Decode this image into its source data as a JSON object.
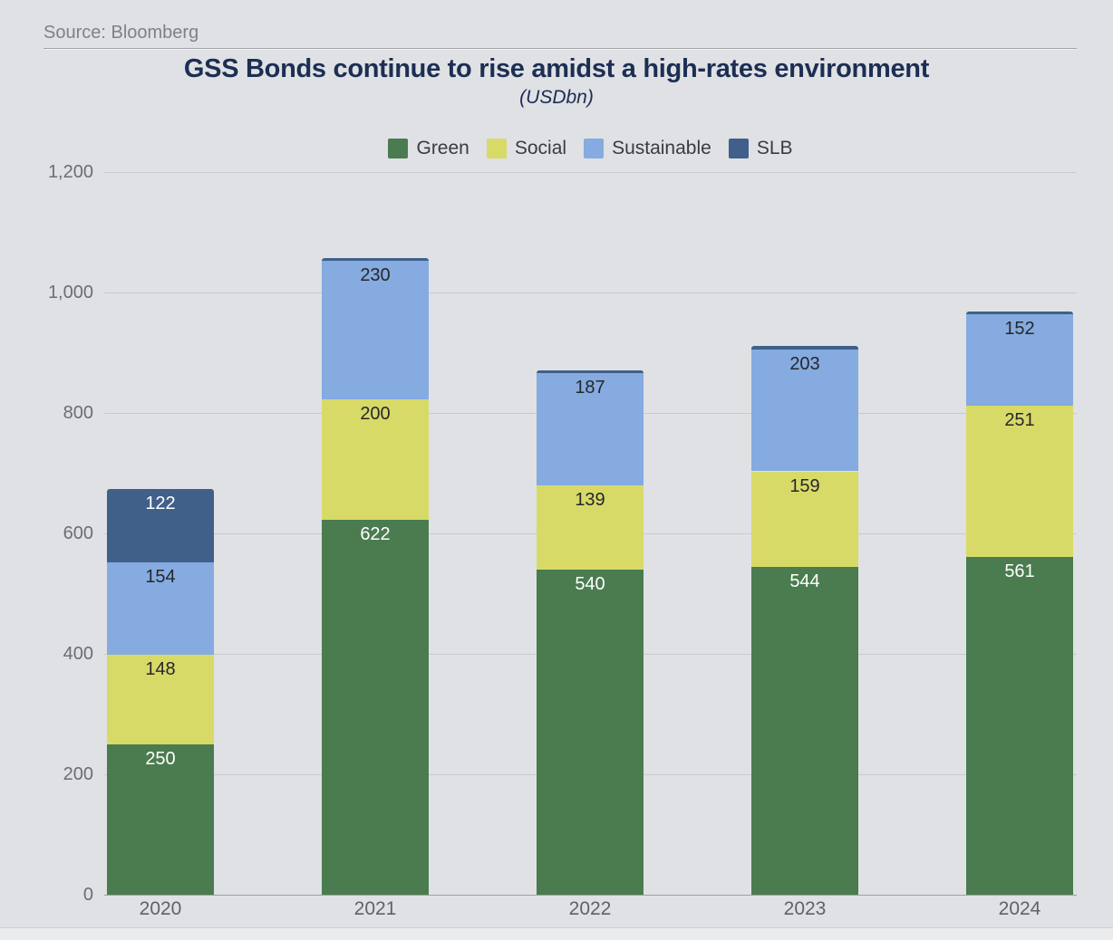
{
  "header": {
    "source": "Source: Bloomberg"
  },
  "chart_data": {
    "type": "bar",
    "stacked": true,
    "title": "GSS Bonds continue to rise amidst a high-rates environment",
    "subtitle": "(USDbn)",
    "categories": [
      "2020",
      "2021",
      "2022",
      "2023",
      "2024"
    ],
    "series": [
      {
        "name": "Green",
        "color": "#4a7c4f",
        "label_color": "#ffffff",
        "values": [
          250,
          622,
          540,
          544,
          561
        ]
      },
      {
        "name": "Social",
        "color": "#d8da68",
        "label_color": "#26272b",
        "values": [
          148,
          200,
          139,
          159,
          251
        ]
      },
      {
        "name": "Sustainable",
        "color": "#85abe0",
        "label_color": "#26272b",
        "values": [
          154,
          230,
          187,
          203,
          152
        ]
      },
      {
        "name": "SLB",
        "color": "#40608a",
        "label_color": "#ffffff",
        "values": [
          122,
          5,
          5,
          6,
          5
        ]
      }
    ],
    "ylim": [
      0,
      1200
    ],
    "ytick_step": 200,
    "ytick_labels": [
      "0",
      "200",
      "400",
      "600",
      "800",
      "1,000",
      "1,200"
    ],
    "grid": true,
    "legend_position": "top-center",
    "background_color": "#dfe1e4",
    "title_color": "#1c2e53"
  }
}
